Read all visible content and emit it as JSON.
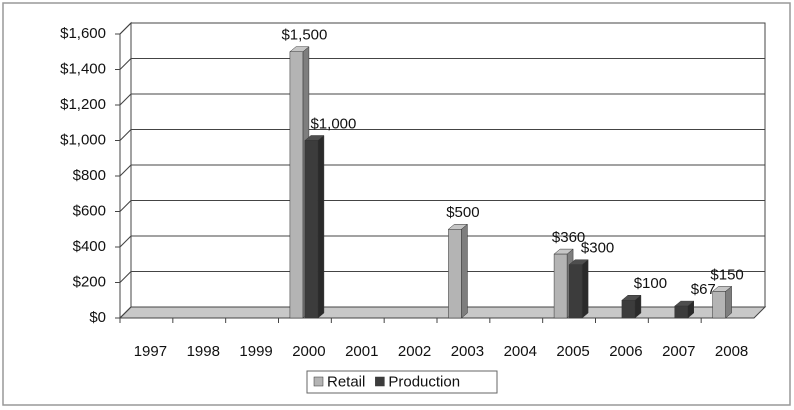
{
  "chart_data": {
    "type": "bar3d",
    "categories": [
      "1997",
      "1998",
      "1999",
      "2000",
      "2001",
      "2002",
      "2003",
      "2004",
      "2005",
      "2006",
      "2007",
      "2008"
    ],
    "series": [
      {
        "name": "Retail",
        "color": "#b4b4b4",
        "values": [
          null,
          null,
          null,
          1500,
          null,
          null,
          500,
          null,
          360,
          null,
          null,
          150
        ],
        "value_labels": [
          null,
          null,
          null,
          "$1,500",
          null,
          null,
          "$500",
          null,
          "$360",
          null,
          null,
          "$150"
        ]
      },
      {
        "name": "Production",
        "color": "#3c3c3c",
        "values": [
          null,
          null,
          null,
          1000,
          null,
          null,
          null,
          null,
          300,
          100,
          67,
          null
        ],
        "value_labels": [
          null,
          null,
          null,
          "$1,000",
          null,
          null,
          null,
          null,
          "$300",
          "$100",
          "$67",
          null
        ]
      }
    ],
    "ylim": [
      0,
      1600
    ],
    "yticks": [
      {
        "value": 0,
        "label": "$0"
      },
      {
        "value": 200,
        "label": "$200"
      },
      {
        "value": 400,
        "label": "$400"
      },
      {
        "value": 600,
        "label": "$600"
      },
      {
        "value": 800,
        "label": "$800"
      },
      {
        "value": 1000,
        "label": "$1,000"
      },
      {
        "value": 1200,
        "label": "$1,200"
      },
      {
        "value": 1400,
        "label": "$1,400"
      },
      {
        "value": 1600,
        "label": "$1,600"
      }
    ],
    "grid": true,
    "legend": "bottom"
  }
}
